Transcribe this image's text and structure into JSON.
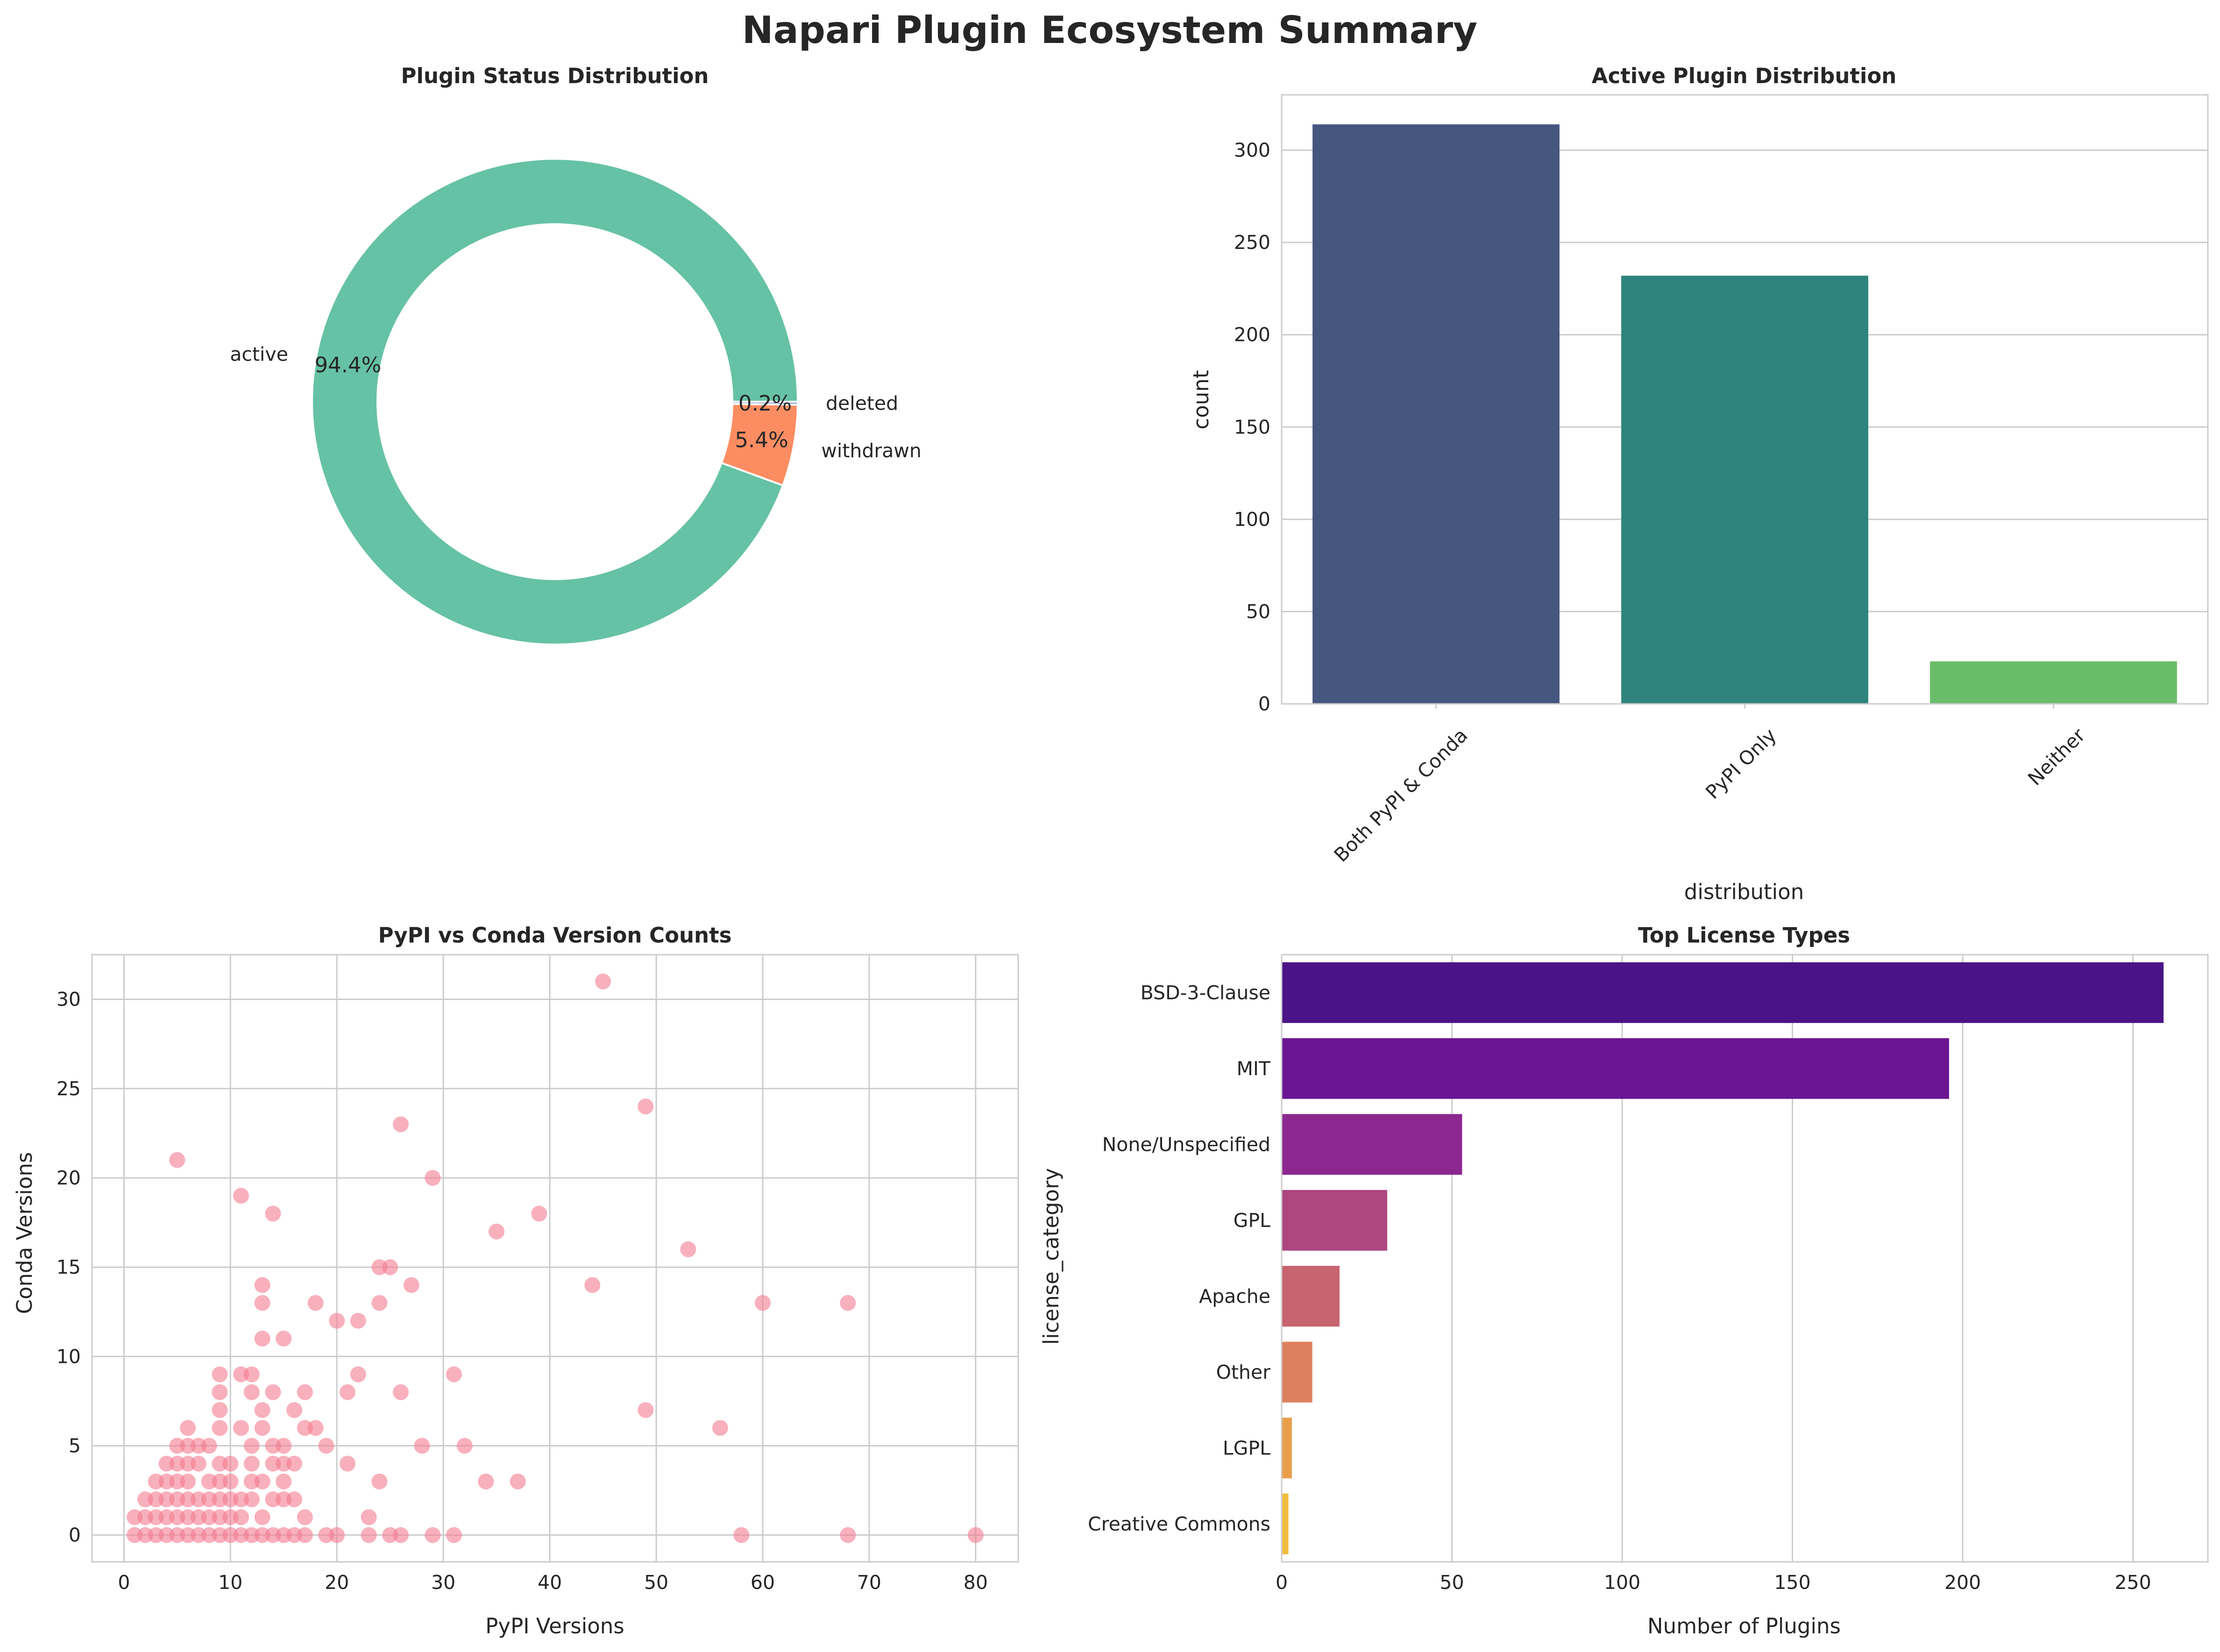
{
  "figure": {
    "title": "Napari Plugin Ecosystem Summary"
  },
  "chart_data": [
    {
      "type": "pie",
      "title": "Plugin Status Distribution",
      "donut": true,
      "labels": [
        "active",
        "withdrawn",
        "deleted"
      ],
      "values": [
        94.4,
        5.4,
        0.2
      ],
      "percent_labels": [
        "94.4%",
        "5.4%",
        "0.2%"
      ],
      "colors": [
        "#66c2a5",
        "#fc8d62",
        "#8da0cb"
      ]
    },
    {
      "type": "bar",
      "title": "Active Plugin Distribution",
      "categories": [
        "Both PyPI & Conda",
        "PyPI Only",
        "Neither"
      ],
      "values": [
        314,
        232,
        23
      ],
      "xlabel": "distribution",
      "ylabel": "count",
      "ylim": [
        0,
        330
      ],
      "yticks": [
        0,
        50,
        100,
        150,
        200,
        250,
        300
      ],
      "colors": [
        "#46577f",
        "#2e847c",
        "#69bd6a"
      ],
      "grid": true
    },
    {
      "type": "scatter",
      "title": "PyPI vs Conda Version Counts",
      "xlabel": "PyPI Versions",
      "ylabel": "Conda Versions",
      "xlim": [
        -3,
        84
      ],
      "ylim": [
        -1.5,
        32.5
      ],
      "xticks": [
        0,
        10,
        20,
        30,
        40,
        50,
        60,
        70,
        80
      ],
      "yticks": [
        0,
        5,
        10,
        15,
        20,
        25,
        30
      ],
      "color": "#f37b90",
      "grid": true,
      "points": [
        [
          1,
          0
        ],
        [
          2,
          0
        ],
        [
          3,
          0
        ],
        [
          4,
          0
        ],
        [
          5,
          0
        ],
        [
          6,
          0
        ],
        [
          7,
          0
        ],
        [
          8,
          0
        ],
        [
          9,
          0
        ],
        [
          10,
          0
        ],
        [
          11,
          0
        ],
        [
          12,
          0
        ],
        [
          13,
          0
        ],
        [
          14,
          0
        ],
        [
          15,
          0
        ],
        [
          16,
          0
        ],
        [
          17,
          0
        ],
        [
          19,
          0
        ],
        [
          20,
          0
        ],
        [
          23,
          0
        ],
        [
          25,
          0
        ],
        [
          26,
          0
        ],
        [
          29,
          0
        ],
        [
          31,
          0
        ],
        [
          58,
          0
        ],
        [
          68,
          0
        ],
        [
          80,
          0
        ],
        [
          1,
          1
        ],
        [
          2,
          1
        ],
        [
          3,
          1
        ],
        [
          4,
          1
        ],
        [
          5,
          1
        ],
        [
          6,
          1
        ],
        [
          7,
          1
        ],
        [
          8,
          1
        ],
        [
          9,
          1
        ],
        [
          10,
          1
        ],
        [
          11,
          1
        ],
        [
          13,
          1
        ],
        [
          17,
          1
        ],
        [
          23,
          1
        ],
        [
          2,
          2
        ],
        [
          3,
          2
        ],
        [
          4,
          2
        ],
        [
          5,
          2
        ],
        [
          6,
          2
        ],
        [
          7,
          2
        ],
        [
          8,
          2
        ],
        [
          9,
          2
        ],
        [
          10,
          2
        ],
        [
          11,
          2
        ],
        [
          12,
          2
        ],
        [
          14,
          2
        ],
        [
          15,
          2
        ],
        [
          16,
          2
        ],
        [
          3,
          3
        ],
        [
          4,
          3
        ],
        [
          5,
          3
        ],
        [
          6,
          3
        ],
        [
          8,
          3
        ],
        [
          9,
          3
        ],
        [
          10,
          3
        ],
        [
          12,
          3
        ],
        [
          13,
          3
        ],
        [
          15,
          3
        ],
        [
          24,
          3
        ],
        [
          34,
          3
        ],
        [
          37,
          3
        ],
        [
          4,
          4
        ],
        [
          5,
          4
        ],
        [
          6,
          4
        ],
        [
          7,
          4
        ],
        [
          9,
          4
        ],
        [
          10,
          4
        ],
        [
          12,
          4
        ],
        [
          14,
          4
        ],
        [
          15,
          4
        ],
        [
          16,
          4
        ],
        [
          21,
          4
        ],
        [
          5,
          5
        ],
        [
          6,
          5
        ],
        [
          7,
          5
        ],
        [
          8,
          5
        ],
        [
          12,
          5
        ],
        [
          14,
          5
        ],
        [
          15,
          5
        ],
        [
          19,
          5
        ],
        [
          28,
          5
        ],
        [
          32,
          5
        ],
        [
          6,
          6
        ],
        [
          9,
          6
        ],
        [
          11,
          6
        ],
        [
          13,
          6
        ],
        [
          17,
          6
        ],
        [
          18,
          6
        ],
        [
          56,
          6
        ],
        [
          9,
          7
        ],
        [
          13,
          7
        ],
        [
          16,
          7
        ],
        [
          49,
          7
        ],
        [
          9,
          8
        ],
        [
          12,
          8
        ],
        [
          14,
          8
        ],
        [
          17,
          8
        ],
        [
          21,
          8
        ],
        [
          26,
          8
        ],
        [
          9,
          9
        ],
        [
          11,
          9
        ],
        [
          12,
          9
        ],
        [
          22,
          9
        ],
        [
          31,
          9
        ],
        [
          13,
          11
        ],
        [
          15,
          11
        ],
        [
          20,
          12
        ],
        [
          22,
          12
        ],
        [
          13,
          13
        ],
        [
          18,
          13
        ],
        [
          24,
          13
        ],
        [
          60,
          13
        ],
        [
          68,
          13
        ],
        [
          13,
          14
        ],
        [
          27,
          14
        ],
        [
          44,
          14
        ],
        [
          24,
          15
        ],
        [
          25,
          15
        ],
        [
          53,
          16
        ],
        [
          35,
          17
        ],
        [
          14,
          18
        ],
        [
          39,
          18
        ],
        [
          11,
          19
        ],
        [
          29,
          20
        ],
        [
          5,
          21
        ],
        [
          26,
          23
        ],
        [
          49,
          24
        ],
        [
          45,
          31
        ]
      ]
    },
    {
      "type": "bar",
      "orientation": "horizontal",
      "title": "Top License Types",
      "categories": [
        "BSD-3-Clause",
        "MIT",
        "None/Unspecified",
        "GPL",
        "Apache",
        "Other",
        "LGPL",
        "Creative Commons"
      ],
      "values": [
        259,
        196,
        53,
        31,
        17,
        9,
        3,
        2
      ],
      "xlabel": "Number of Plugins",
      "ylabel": "license_category",
      "xlim": [
        0,
        272
      ],
      "xticks": [
        0,
        50,
        100,
        150,
        200,
        250
      ],
      "colors": [
        "#4a1486",
        "#6a1594",
        "#8d2790",
        "#ad4681",
        "#c86370",
        "#dd805e",
        "#ea9e4a",
        "#f1bd3f"
      ],
      "grid": true
    }
  ]
}
